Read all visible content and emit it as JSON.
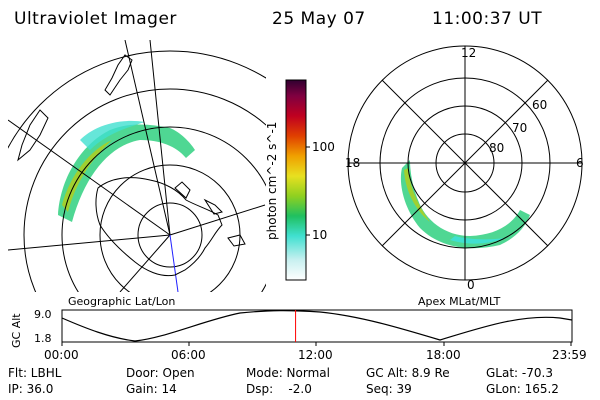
{
  "header": {
    "instrument": "Ultraviolet Imager",
    "date": "25 May 07",
    "time": "11:00:37 UT"
  },
  "left_panel": {
    "label": "Geographic Lat/Lon"
  },
  "right_panel": {
    "label": "Apex MLat/MLT",
    "mlt_labels": [
      "12",
      "18",
      "6",
      "0"
    ],
    "mlat_labels": [
      "60",
      "70",
      "80"
    ]
  },
  "colorbar": {
    "unit_label": "photon cm^-2 s^-1",
    "ticks": [
      "100",
      "10"
    ],
    "scale": "log",
    "colors": [
      "#ffffff",
      "#c8f0f0",
      "#40e0d0",
      "#20c060",
      "#90d020",
      "#e8e020",
      "#f0a000",
      "#e04000",
      "#c00020",
      "#800040",
      "#300030"
    ]
  },
  "altitude_plot": {
    "ylabel": "GC Alt",
    "y_ticks": [
      "9.0",
      "1.8"
    ],
    "x_ticks": [
      "00:00",
      "06:00",
      "12:00",
      "18:00",
      "23:59"
    ],
    "current_time_fraction": 0.458,
    "marker_color": "#ff0000"
  },
  "info": {
    "flt": "Flt: LBHL",
    "ip": "IP: 36.0",
    "door": "Door: Open",
    "gain": "Gain: 14",
    "mode": "Mode: Normal",
    "dsp": "Dsp:    -2.0",
    "gc_alt": "GC Alt: 8.9 Re",
    "seq": "Seq: 39",
    "glat": "GLat: -70.3",
    "glon": "GLon: 165.2"
  }
}
